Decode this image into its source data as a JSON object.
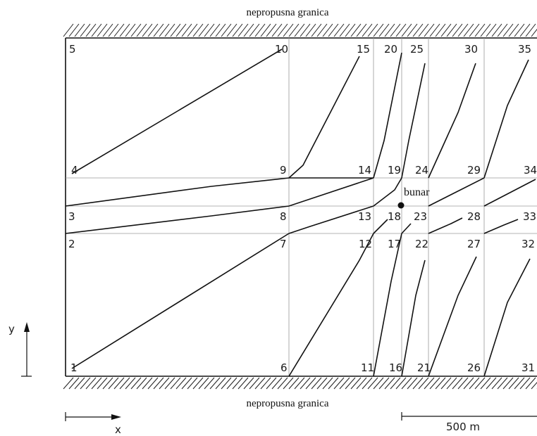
{
  "top_boundary_label": "nepropusna granica",
  "bottom_boundary_label": "nepropusna granica",
  "well_label": "bunar",
  "y_axis_label": "y",
  "x_axis_label": "x",
  "scale_label": "500 m",
  "nodes": [
    "1",
    "2",
    "3",
    "4",
    "5",
    "6",
    "7",
    "8",
    "9",
    "10",
    "11",
    "12",
    "13",
    "14",
    "15",
    "16",
    "17",
    "18",
    "19",
    "20",
    "21",
    "22",
    "23",
    "24",
    "25",
    "26",
    "27",
    "28",
    "29",
    "30",
    "31",
    "32",
    "33",
    "34",
    "35"
  ]
}
